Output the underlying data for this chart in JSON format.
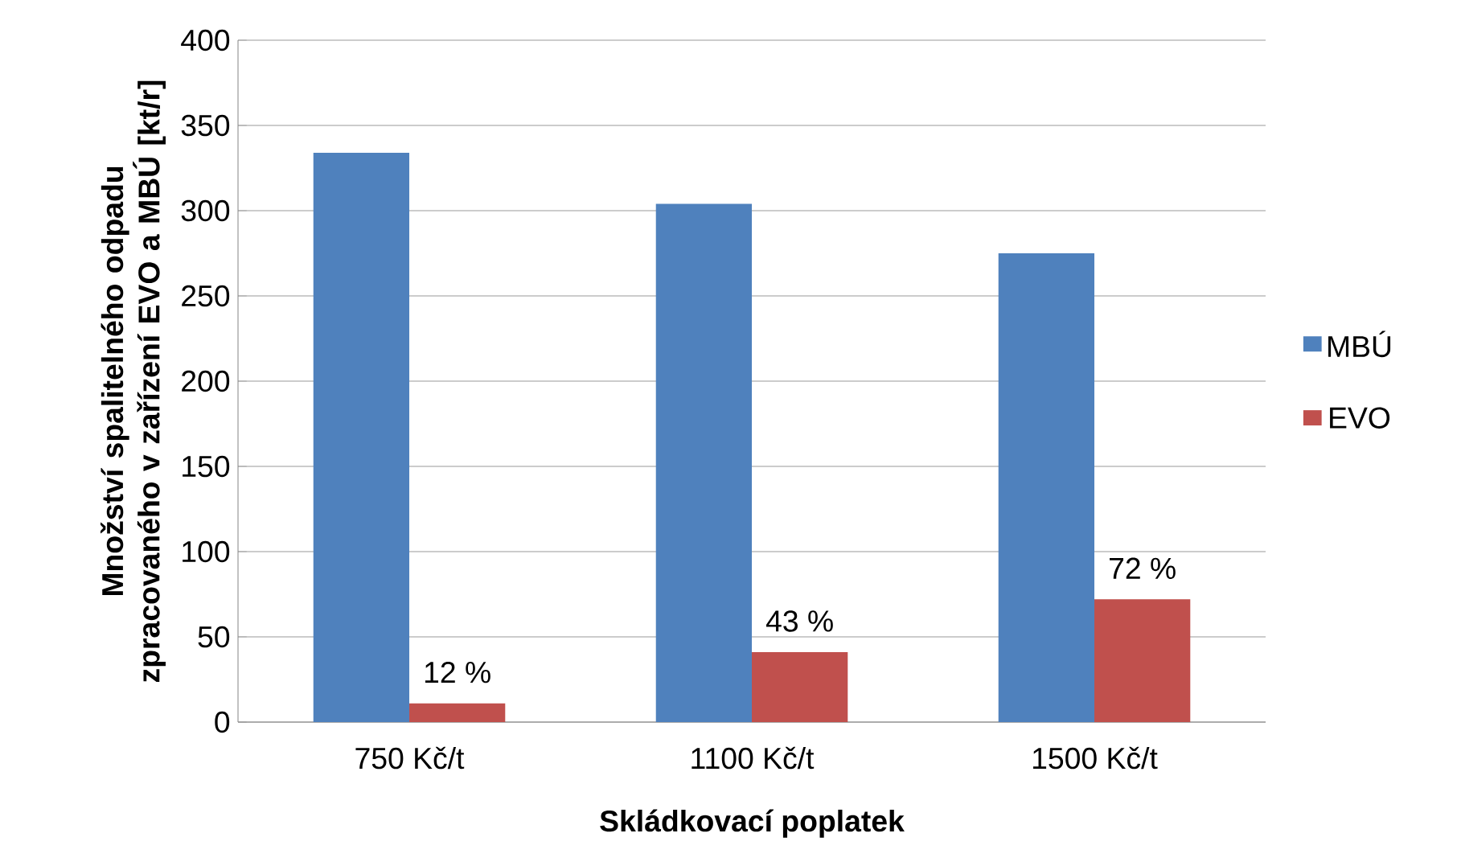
{
  "chart_data": {
    "type": "bar",
    "xlabel": "Skládkovací poplatek",
    "ylabel": "Množství spalitelného odpadu zpracovaného v zařízení EVO a MBÚ [kt/r]",
    "categories": [
      "750 Kč/t",
      "1100 Kč/t",
      "1500 Kč/t"
    ],
    "series": [
      {
        "name": "MBÚ",
        "color": "#4f81bd",
        "values": [
          334,
          304,
          275
        ]
      },
      {
        "name": "EVO",
        "color": "#c0504d",
        "values": [
          11,
          41,
          72
        ]
      }
    ],
    "annotations": [
      {
        "text": "12 %",
        "x": "750 Kč/t",
        "y": 11
      },
      {
        "text": "43 %",
        "x": "1100 Kč/t",
        "y": 41
      },
      {
        "text": "72 %",
        "x": "1500 Kč/t",
        "y": 72
      }
    ],
    "ylim": [
      0,
      400
    ],
    "yticks": [
      0,
      50,
      100,
      150,
      200,
      250,
      300,
      350,
      400
    ],
    "grid": "y",
    "legend": "right"
  }
}
